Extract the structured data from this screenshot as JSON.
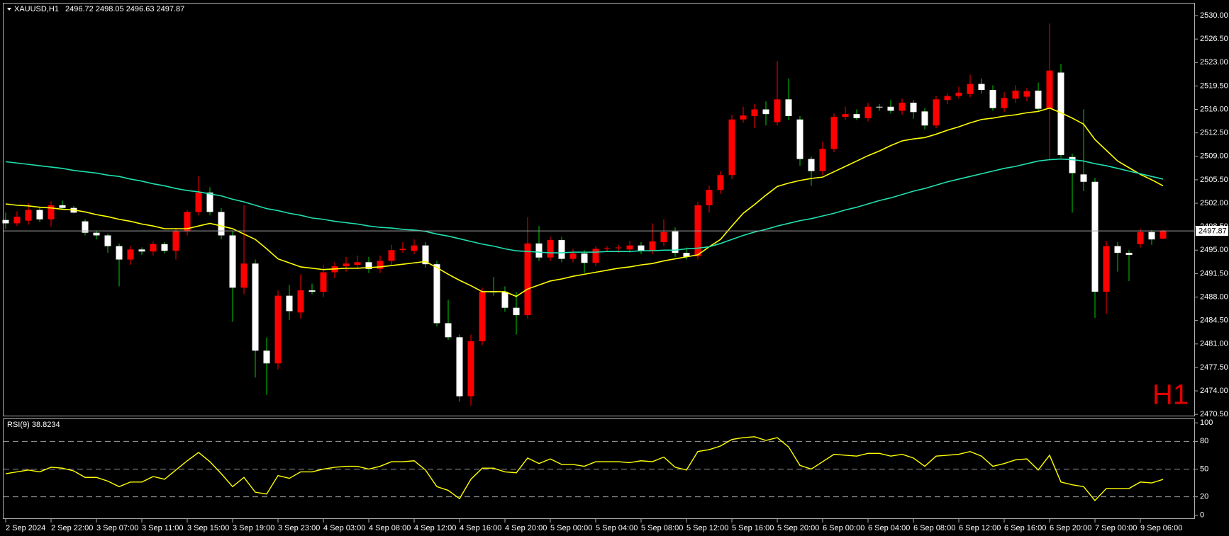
{
  "chart_data": [
    {
      "type": "candlestick",
      "title": "XAUUSD,H1",
      "watermark": "H1",
      "up_color": "#ff0000",
      "down_color": "#ffffff",
      "up_wick_color": "#ff0000",
      "down_wick_color": "#00d000",
      "price_line": true,
      "price_line_color": "#a0a0a0",
      "ylim": [
        2470.2,
        2531.8
      ],
      "yticks": [
        {
          "value": 2530,
          "label": "2530.00"
        },
        {
          "value": 2526.5,
          "label": "2526.50"
        },
        {
          "value": 2523,
          "label": "2523.00"
        },
        {
          "value": 2519.5,
          "label": "2519.50"
        },
        {
          "value": 2516,
          "label": "2516.00"
        },
        {
          "value": 2512.5,
          "label": "2512.50"
        },
        {
          "value": 2509,
          "label": "2509.00"
        },
        {
          "value": 2505.5,
          "label": "2505.50"
        },
        {
          "value": 2502,
          "label": "2502.00"
        },
        {
          "value": 2498.5,
          "label": "2498.50"
        },
        {
          "value": 2495,
          "label": "2495.00"
        },
        {
          "value": 2491.5,
          "label": "2491.50"
        },
        {
          "value": 2488,
          "label": "2488.00"
        },
        {
          "value": 2484.5,
          "label": "2484.50"
        },
        {
          "value": 2481,
          "label": "2481.00"
        },
        {
          "value": 2477.5,
          "label": "2477.50"
        },
        {
          "value": 2474,
          "label": "2474.00"
        },
        {
          "value": 2470.5,
          "label": "2470.50"
        }
      ],
      "open": [
        2499.5,
        2499.0,
        2499.4,
        2501.0,
        2499.6,
        2501.7,
        2501.3,
        2499.3,
        2497.6,
        2497.2,
        2495.6,
        2493.6,
        2495.1,
        2494.8,
        2495.9,
        2494.9,
        2497.8,
        2500.7,
        2503.6,
        2500.7,
        2497.2,
        2489.4,
        2493.0,
        2480.0,
        2478.1,
        2488.2,
        2485.7,
        2489.0,
        2488.8,
        2491.7,
        2492.6,
        2492.8,
        2493.2,
        2492.2,
        2493.4,
        2495.0,
        2494.9,
        2495.7,
        2492.9,
        2484.1,
        2482.0,
        2473.2,
        2481.4,
        2488.9,
        2488.8,
        2486.4,
        2485.3,
        2496.0,
        2493.9,
        2496.5,
        2493.7,
        2494.5,
        2493.1,
        2495.2,
        2495.3,
        2495.1,
        2495.7,
        2494.9,
        2496.2,
        2497.8,
        2494.6,
        2494.1,
        2501.7,
        2504.0,
        2506.2,
        2514.5,
        2515.0,
        2516.0,
        2514.1,
        2517.5,
        2514.5,
        2508.6,
        2506.8,
        2510.1,
        2514.9,
        2515.3,
        2514.7,
        2516.4,
        2516.4,
        2515.8,
        2517.0,
        2515.7,
        2513.6,
        2517.4,
        2518.0,
        2518.3,
        2519.8,
        2518.9,
        2516.2,
        2517.6,
        2517.9,
        2518.8,
        2516.1,
        2521.5,
        2508.9,
        2506.3,
        2505.2,
        2488.8,
        2495.6,
        2494.6,
        2495.9,
        2497.7,
        2496.72
      ],
      "high": [
        2500.6,
        2500.8,
        2502.0,
        2501.5,
        2502.3,
        2502.4,
        2501.6,
        2499.6,
        2497.9,
        2497.5,
        2496.0,
        2495.6,
        2495.4,
        2496.3,
        2496.2,
        2498.3,
        2501.0,
        2506.0,
        2504.4,
        2501.3,
        2497.8,
        2501.7,
        2493.6,
        2482.0,
        2489.0,
        2489.8,
        2491.4,
        2490.0,
        2492.8,
        2493.2,
        2494.0,
        2494.2,
        2494.0,
        2494.2,
        2495.8,
        2496.2,
        2496.6,
        2496.2,
        2493.4,
        2487.6,
        2482.4,
        2482.4,
        2489.4,
        2491.0,
        2489.6,
        2488.8,
        2499.9,
        2498.6,
        2497.0,
        2497.0,
        2495.2,
        2495.0,
        2495.6,
        2495.6,
        2495.8,
        2496.4,
        2496.2,
        2499.0,
        2499.6,
        2498.4,
        2495.4,
        2502.2,
        2504.6,
        2506.8,
        2515.2,
        2516.4,
        2516.8,
        2517.2,
        2523.2,
        2520.6,
        2515.0,
        2509.0,
        2511.2,
        2515.4,
        2516.4,
        2516.0,
        2517.0,
        2516.8,
        2517.4,
        2517.6,
        2517.4,
        2516.2,
        2518.0,
        2518.4,
        2519.4,
        2521.2,
        2520.6,
        2519.6,
        2518.6,
        2519.6,
        2519.2,
        2520.0,
        2528.8,
        2522.8,
        2509.4,
        2516.0,
        2505.8,
        2496.4,
        2496.2,
        2495.0,
        2498.2,
        2498.0,
        2498.05
      ],
      "low": [
        2498.2,
        2498.6,
        2498.8,
        2499.2,
        2498.5,
        2501.0,
        2500.5,
        2497.2,
        2496.6,
        2494.6,
        2489.6,
        2492.8,
        2494.3,
        2494.2,
        2494.5,
        2493.6,
        2497.2,
        2500.2,
        2500.2,
        2496.6,
        2484.3,
        2488.4,
        2476.0,
        2473.4,
        2477.2,
        2484.6,
        2484.8,
        2488.4,
        2488.0,
        2490.8,
        2491.8,
        2492.2,
        2491.6,
        2491.6,
        2492.8,
        2494.6,
        2494.4,
        2492.4,
        2483.6,
        2481.6,
        2472.4,
        2471.8,
        2480.8,
        2488.2,
        2485.8,
        2482.4,
        2484.8,
        2493.4,
        2493.4,
        2493.2,
        2493.2,
        2491.6,
        2492.6,
        2494.8,
        2494.6,
        2494.6,
        2494.4,
        2494.4,
        2495.6,
        2494.0,
        2493.6,
        2493.6,
        2500.6,
        2503.4,
        2505.6,
        2514.0,
        2513.2,
        2513.6,
        2513.6,
        2514.4,
        2507.6,
        2504.6,
        2506.2,
        2509.6,
        2514.4,
        2514.4,
        2514.2,
        2515.8,
        2515.4,
        2515.2,
        2514.6,
        2513.0,
        2513.2,
        2516.8,
        2517.6,
        2517.8,
        2518.4,
        2515.8,
        2515.6,
        2517.0,
        2517.2,
        2515.6,
        2508.6,
        2508.8,
        2500.6,
        2503.8,
        2484.9,
        2485.5,
        2491.8,
        2490.4,
        2495.4,
        2495.8,
        2496.63
      ],
      "close": [
        2499.0,
        2500.0,
        2501.0,
        2499.6,
        2501.7,
        2501.3,
        2500.6,
        2497.6,
        2497.2,
        2495.6,
        2493.6,
        2495.1,
        2494.8,
        2495.9,
        2494.9,
        2497.8,
        2500.7,
        2503.6,
        2500.7,
        2497.2,
        2489.4,
        2493.0,
        2480.0,
        2478.1,
        2488.2,
        2485.9,
        2489.0,
        2488.8,
        2491.7,
        2492.6,
        2493.0,
        2493.2,
        2492.2,
        2493.4,
        2495.0,
        2495.2,
        2495.7,
        2492.9,
        2484.1,
        2482.0,
        2473.2,
        2481.4,
        2488.8,
        2488.7,
        2486.4,
        2485.3,
        2496.0,
        2493.9,
        2496.5,
        2493.7,
        2494.5,
        2493.1,
        2495.2,
        2495.3,
        2495.4,
        2495.7,
        2494.9,
        2496.3,
        2497.7,
        2494.6,
        2494.0,
        2501.7,
        2504.0,
        2506.2,
        2514.5,
        2515.1,
        2516.0,
        2515.3,
        2517.5,
        2515.0,
        2508.6,
        2506.8,
        2510.1,
        2514.9,
        2515.3,
        2514.7,
        2516.4,
        2516.3,
        2515.8,
        2517.0,
        2515.6,
        2513.6,
        2517.5,
        2518.0,
        2518.5,
        2519.8,
        2518.9,
        2516.2,
        2517.7,
        2518.8,
        2518.7,
        2516.1,
        2521.8,
        2509.2,
        2506.5,
        2505.2,
        2488.8,
        2495.6,
        2494.6,
        2494.3,
        2497.7,
        2496.6,
        2497.87
      ],
      "overlays": [
        {
          "color": "#ffff00",
          "values": [
            2501.9,
            2501.7,
            2501.6,
            2501.4,
            2501.3,
            2501.1,
            2501.0,
            2500.7,
            2500.3,
            2500.0,
            2499.6,
            2499.3,
            2498.9,
            2498.6,
            2498.2,
            2498.2,
            2498.2,
            2498.6,
            2499.0,
            2498.6,
            2498.2,
            2497.4,
            2496.6,
            2495.2,
            2493.7,
            2493.1,
            2492.5,
            2492.3,
            2492.1,
            2492.2,
            2492.3,
            2492.3,
            2492.4,
            2492.5,
            2492.7,
            2492.9,
            2493.1,
            2493.3,
            2492.4,
            2491.4,
            2490.5,
            2489.7,
            2488.8,
            2488.8,
            2488.8,
            2488.1,
            2489.2,
            2489.8,
            2490.4,
            2490.7,
            2491.1,
            2491.4,
            2491.7,
            2492.0,
            2492.3,
            2492.5,
            2492.8,
            2493.0,
            2493.4,
            2493.7,
            2494.0,
            2494.3,
            2495.5,
            2496.6,
            2498.6,
            2500.5,
            2501.8,
            2503.2,
            2504.5,
            2505.0,
            2505.4,
            2505.7,
            2505.9,
            2506.7,
            2507.5,
            2508.3,
            2509.1,
            2509.8,
            2510.6,
            2511.3,
            2511.6,
            2511.8,
            2512.3,
            2512.9,
            2513.4,
            2514.0,
            2514.5,
            2514.7,
            2515.0,
            2515.2,
            2515.5,
            2515.7,
            2516.2,
            2515.5,
            2514.7,
            2513.8,
            2511.5,
            2509.9,
            2508.3,
            2507.3,
            2506.3,
            2505.5,
            2504.6
          ]
        },
        {
          "color": "#20e0b0",
          "values": [
            2508.2,
            2508.0,
            2507.8,
            2507.6,
            2507.4,
            2507.2,
            2506.9,
            2506.7,
            2506.5,
            2506.2,
            2506.0,
            2505.6,
            2505.3,
            2504.9,
            2504.6,
            2504.2,
            2503.9,
            2503.7,
            2503.4,
            2503.1,
            2502.6,
            2502.2,
            2501.7,
            2501.2,
            2500.9,
            2500.5,
            2500.2,
            2499.8,
            2499.6,
            2499.3,
            2499.1,
            2498.9,
            2498.6,
            2498.4,
            2498.3,
            2498.1,
            2498.0,
            2497.8,
            2497.4,
            2497.1,
            2496.7,
            2496.3,
            2495.9,
            2495.6,
            2495.2,
            2494.9,
            2494.8,
            2494.7,
            2494.6,
            2494.6,
            2494.7,
            2494.7,
            2494.7,
            2494.8,
            2494.8,
            2494.8,
            2494.9,
            2494.9,
            2495.0,
            2495.0,
            2495.2,
            2495.3,
            2495.5,
            2496.0,
            2496.6,
            2497.2,
            2497.7,
            2498.1,
            2498.6,
            2499.0,
            2499.4,
            2499.7,
            2500.1,
            2500.5,
            2501.0,
            2501.4,
            2501.9,
            2502.4,
            2502.8,
            2503.3,
            2503.8,
            2504.2,
            2504.7,
            2505.2,
            2505.6,
            2506.0,
            2506.4,
            2506.8,
            2507.2,
            2507.5,
            2507.9,
            2508.3,
            2508.5,
            2508.6,
            2508.5,
            2508.3,
            2507.9,
            2507.6,
            2507.2,
            2506.8,
            2506.4,
            2506.0,
            2505.6
          ]
        }
      ]
    },
    {
      "type": "line",
      "title": "RSI(9) 38.8234",
      "color": "#ffff00",
      "ylim": [
        -4,
        104
      ],
      "yticks": [
        0,
        20,
        50,
        80,
        100
      ],
      "levels": [
        20,
        50,
        80
      ],
      "categories": [
        "2 Sep 2024",
        null,
        null,
        null,
        "2 Sep 22:00",
        null,
        null,
        null,
        "3 Sep 07:00",
        null,
        null,
        null,
        "3 Sep 11:00",
        null,
        null,
        null,
        "3 Sep 15:00",
        null,
        null,
        null,
        "3 Sep 19:00",
        null,
        null,
        null,
        "3 Sep 23:00",
        null,
        null,
        null,
        "4 Sep 03:00",
        null,
        null,
        null,
        "4 Sep 08:00",
        null,
        null,
        null,
        "4 Sep 12:00",
        null,
        null,
        null,
        "4 Sep 16:00",
        null,
        null,
        null,
        "4 Sep 20:00",
        null,
        null,
        null,
        "5 Sep 00:00",
        null,
        null,
        null,
        "5 Sep 04:00",
        null,
        null,
        null,
        "5 Sep 08:00",
        null,
        null,
        null,
        "5 Sep 12:00",
        null,
        null,
        null,
        "5 Sep 16:00",
        null,
        null,
        null,
        "5 Sep 20:00",
        null,
        null,
        null,
        "6 Sep 00:00",
        null,
        null,
        null,
        "6 Sep 04:00",
        null,
        null,
        null,
        "6 Sep 08:00",
        null,
        null,
        null,
        "6 Sep 12:00",
        null,
        null,
        null,
        "6 Sep 16:00",
        null,
        null,
        null,
        "6 Sep 20:00",
        null,
        null,
        null,
        "7 Sep 00:00",
        null,
        null,
        null,
        "9 Sep 06:00",
        null,
        null
      ],
      "values": [
        45,
        47,
        49,
        47,
        52,
        51,
        48,
        41,
        41,
        37,
        31,
        36,
        36,
        42,
        39,
        49,
        59,
        68,
        58,
        45,
        31,
        41,
        25,
        23,
        43,
        40,
        47,
        47,
        50,
        52,
        53,
        53,
        50,
        53,
        58,
        58,
        59,
        49,
        31,
        27,
        18,
        39,
        51,
        51,
        47,
        46,
        62,
        56,
        61,
        55,
        55,
        53,
        58,
        58,
        58,
        57,
        59,
        58,
        63,
        52,
        49,
        69,
        71,
        75,
        82,
        84,
        85,
        81,
        84,
        74,
        54,
        50,
        58,
        66,
        65,
        64,
        67,
        67,
        64,
        66,
        62,
        53,
        64,
        65,
        66,
        69,
        64,
        53,
        56,
        60,
        61,
        49,
        65,
        36,
        33,
        31,
        16,
        29,
        29,
        29,
        36,
        35,
        38.8234
      ]
    }
  ]
}
